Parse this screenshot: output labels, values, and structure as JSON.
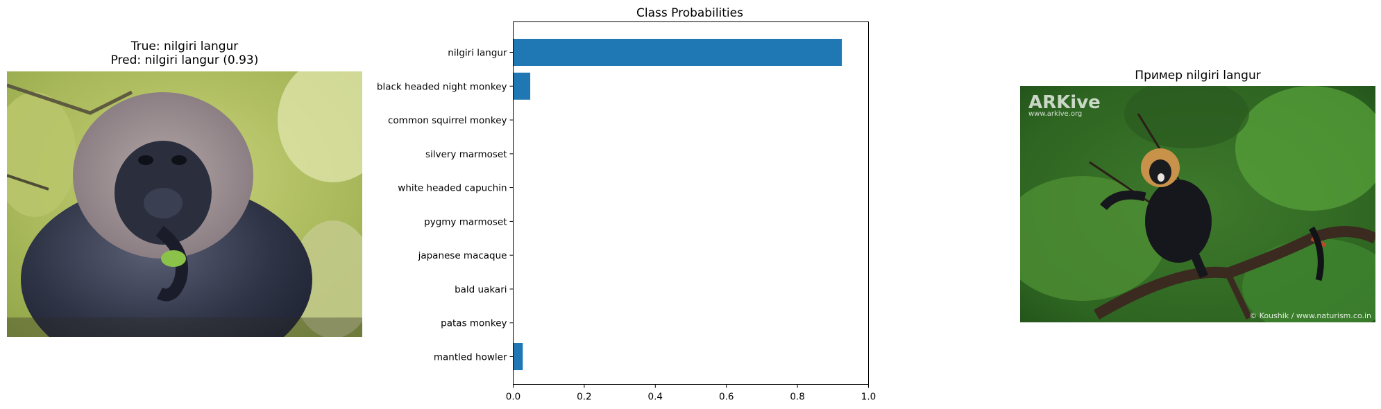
{
  "left_panel": {
    "title_true": "True: nilgiri langur",
    "title_pred": "Pred: nilgiri langur (0.93)"
  },
  "right_panel": {
    "title": "Пример nilgiri langur",
    "watermark_logo": "ARKive",
    "watermark_url": "www.arkive.org",
    "credit": "© Koushik / www.naturism.co.in"
  },
  "chart_data": {
    "type": "bar",
    "orientation": "horizontal",
    "title": "Class Probabilities",
    "categories": [
      "nilgiri langur",
      "black headed night monkey",
      "common squirrel monkey",
      "silvery marmoset",
      "white headed capuchin",
      "pygmy marmoset",
      "japanese macaque",
      "bald uakari",
      "patas monkey",
      "mantled howler"
    ],
    "values": [
      0.925,
      0.048,
      0.001,
      0.0,
      0.0,
      0.0,
      0.0,
      0.0,
      0.0,
      0.027
    ],
    "xlim": [
      0,
      1.0
    ],
    "xticks": [
      "0.0",
      "0.2",
      "0.4",
      "0.6",
      "0.8",
      "1.0"
    ],
    "bar_color": "#1f77b4",
    "grid": false
  }
}
